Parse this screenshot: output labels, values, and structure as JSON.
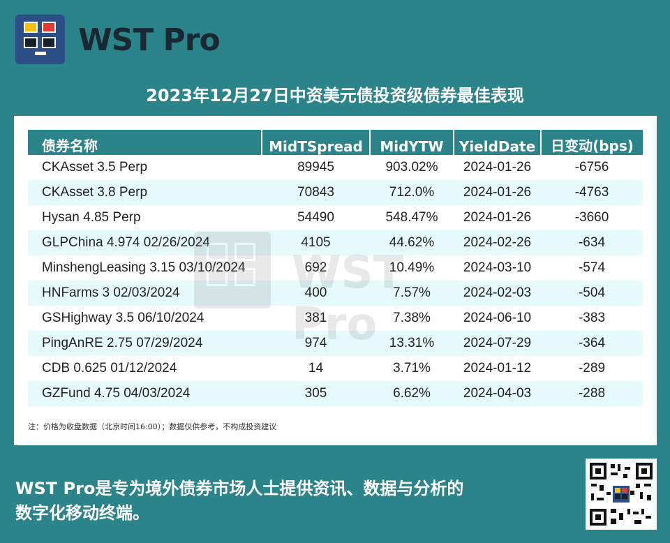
{
  "brand": {
    "name": "WST Pro"
  },
  "page": {
    "title": "2023年12月27日中资美元债投资级债券最佳表现"
  },
  "table": {
    "headers": [
      "债券名称",
      "MidTSpread",
      "MidYTW",
      "YieldDate",
      "日变动(bps)"
    ],
    "rows": [
      [
        "CKAsset 3.5 Perp",
        "89945",
        "903.02%",
        "2024-01-26",
        "-6756"
      ],
      [
        "CKAsset 3.8 Perp",
        "70843",
        "712.0%",
        "2024-01-26",
        "-4763"
      ],
      [
        "Hysan 4.85 Perp",
        "54490",
        "548.47%",
        "2024-01-26",
        "-3660"
      ],
      [
        "GLPChina 4.974 02/26/2024",
        "4105",
        "44.62%",
        "2024-02-26",
        "-634"
      ],
      [
        "MinshengLeasing 3.15 03/10/2024",
        "692",
        "10.49%",
        "2024-03-10",
        "-574"
      ],
      [
        "HNFarms 3 02/03/2024",
        "400",
        "7.57%",
        "2024-02-03",
        "-504"
      ],
      [
        "GSHighway 3.5 06/10/2024",
        "381",
        "7.38%",
        "2024-06-10",
        "-383"
      ],
      [
        "PingAnRE 2.75 07/29/2024",
        "974",
        "13.31%",
        "2024-07-29",
        "-364"
      ],
      [
        "CDB 0.625 01/12/2024",
        "14",
        "3.71%",
        "2024-01-12",
        "-289"
      ],
      [
        "GZFund 4.75 04/03/2024",
        "305",
        "6.62%",
        "2024-04-03",
        "-288"
      ]
    ]
  },
  "note": "注：价格为收盘数据（北京时间16:00）；数据仅供参考，不构成投资建议",
  "footer": {
    "line1": "WST Pro是专为境外债券市场人士提供资讯、数据与分析的",
    "line2": "数字化移动终端。"
  },
  "colors": {
    "background": "#2c848b",
    "header_row": "#2c848b",
    "alt_row": "#e7fafb",
    "logo_bg": "#2c4e86",
    "logo_yellow": "#f4c20d",
    "logo_red": "#e53935"
  },
  "icons": {
    "logo": "wst-pro-logo-icon",
    "qr": "qr-code-icon"
  }
}
